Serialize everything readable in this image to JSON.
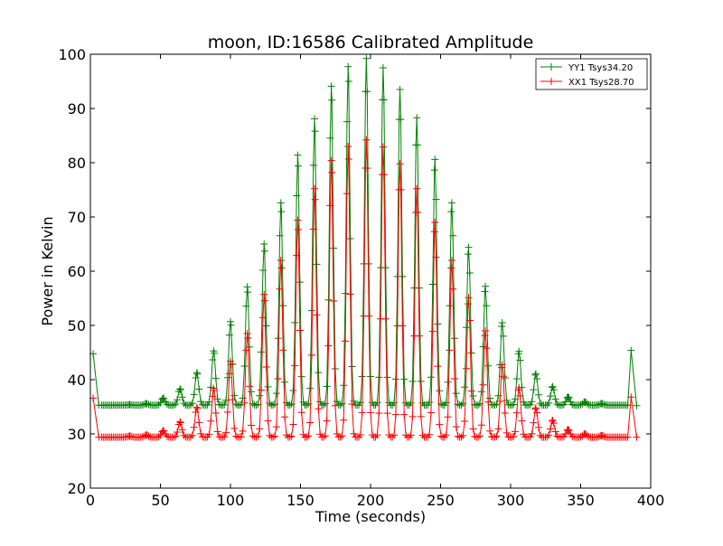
{
  "chart_data": {
    "type": "line",
    "title": "moon, ID:16586 Calibrated Amplitude",
    "xlabel": "Time (seconds)",
    "ylabel": "Power in Kelvin",
    "xlim": [
      0,
      400
    ],
    "ylim": [
      20,
      100
    ],
    "xticks": [
      0,
      50,
      100,
      150,
      200,
      250,
      300,
      350,
      400
    ],
    "yticks": [
      20,
      30,
      40,
      50,
      60,
      70,
      80,
      90,
      100
    ],
    "grid": false,
    "legend_position": "top-right",
    "marker": "plus",
    "sample_interval": 1.2,
    "series": [
      {
        "name": "YY1 Tsys34.20",
        "color": "#008000",
        "first_point": [
          2,
          44.8
        ],
        "last_point": [
          390,
          35.2
        ],
        "spike": [
          386,
          45.4
        ],
        "baseline": 35.3,
        "peaks": [
          {
            "t": 28,
            "v": 35.4
          },
          {
            "t": 40,
            "v": 35.6
          },
          {
            "t": 52,
            "v": 36.6
          },
          {
            "t": 64,
            "v": 38.3
          },
          {
            "t": 76,
            "v": 41.3
          },
          {
            "t": 88,
            "v": 45.3
          },
          {
            "t": 100,
            "v": 50.7
          },
          {
            "t": 112,
            "v": 57.1
          },
          {
            "t": 124,
            "v": 65.0
          },
          {
            "t": 136,
            "v": 72.6
          },
          {
            "t": 148,
            "v": 81.4
          },
          {
            "t": 160,
            "v": 88.1
          },
          {
            "t": 172,
            "v": 94.1
          },
          {
            "t": 184,
            "v": 97.7
          },
          {
            "t": 197,
            "v": 99.2
          },
          {
            "t": 209,
            "v": 97.5
          },
          {
            "t": 221,
            "v": 93.5
          },
          {
            "t": 233,
            "v": 88.3
          },
          {
            "t": 246,
            "v": 80.6
          },
          {
            "t": 258,
            "v": 72.6
          },
          {
            "t": 270,
            "v": 64.4
          },
          {
            "t": 282,
            "v": 57.2
          },
          {
            "t": 294,
            "v": 50.5
          },
          {
            "t": 306,
            "v": 45.2
          },
          {
            "t": 318,
            "v": 41.1
          },
          {
            "t": 330,
            "v": 38.7
          },
          {
            "t": 341,
            "v": 36.8
          },
          {
            "t": 353,
            "v": 35.9
          },
          {
            "t": 365,
            "v": 35.6
          }
        ]
      },
      {
        "name": "XX1 Tsys28.70",
        "color": "#ff0000",
        "first_point": [
          2,
          36.6
        ],
        "last_point": [
          390,
          29.4
        ],
        "spike": [
          386,
          36.8
        ],
        "baseline": 29.4,
        "peaks": [
          {
            "t": 28,
            "v": 29.6
          },
          {
            "t": 40,
            "v": 29.8
          },
          {
            "t": 52,
            "v": 30.6
          },
          {
            "t": 64,
            "v": 32.2
          },
          {
            "t": 76,
            "v": 34.9
          },
          {
            "t": 88,
            "v": 38.4
          },
          {
            "t": 100,
            "v": 43.4
          },
          {
            "t": 112,
            "v": 48.5
          },
          {
            "t": 124,
            "v": 55.7
          },
          {
            "t": 136,
            "v": 62.0
          },
          {
            "t": 148,
            "v": 69.4
          },
          {
            "t": 160,
            "v": 75.2
          },
          {
            "t": 172,
            "v": 80.4
          },
          {
            "t": 184,
            "v": 83.0
          },
          {
            "t": 197,
            "v": 84.2
          },
          {
            "t": 209,
            "v": 82.9
          },
          {
            "t": 221,
            "v": 79.8
          },
          {
            "t": 233,
            "v": 75.2
          },
          {
            "t": 246,
            "v": 69.0
          },
          {
            "t": 258,
            "v": 62.0
          },
          {
            "t": 270,
            "v": 55.1
          },
          {
            "t": 282,
            "v": 49.0
          },
          {
            "t": 294,
            "v": 42.8
          },
          {
            "t": 306,
            "v": 38.5
          },
          {
            "t": 318,
            "v": 34.8
          },
          {
            "t": 330,
            "v": 32.5
          },
          {
            "t": 341,
            "v": 30.8
          },
          {
            "t": 353,
            "v": 30.0
          },
          {
            "t": 365,
            "v": 29.7
          }
        ]
      }
    ]
  }
}
